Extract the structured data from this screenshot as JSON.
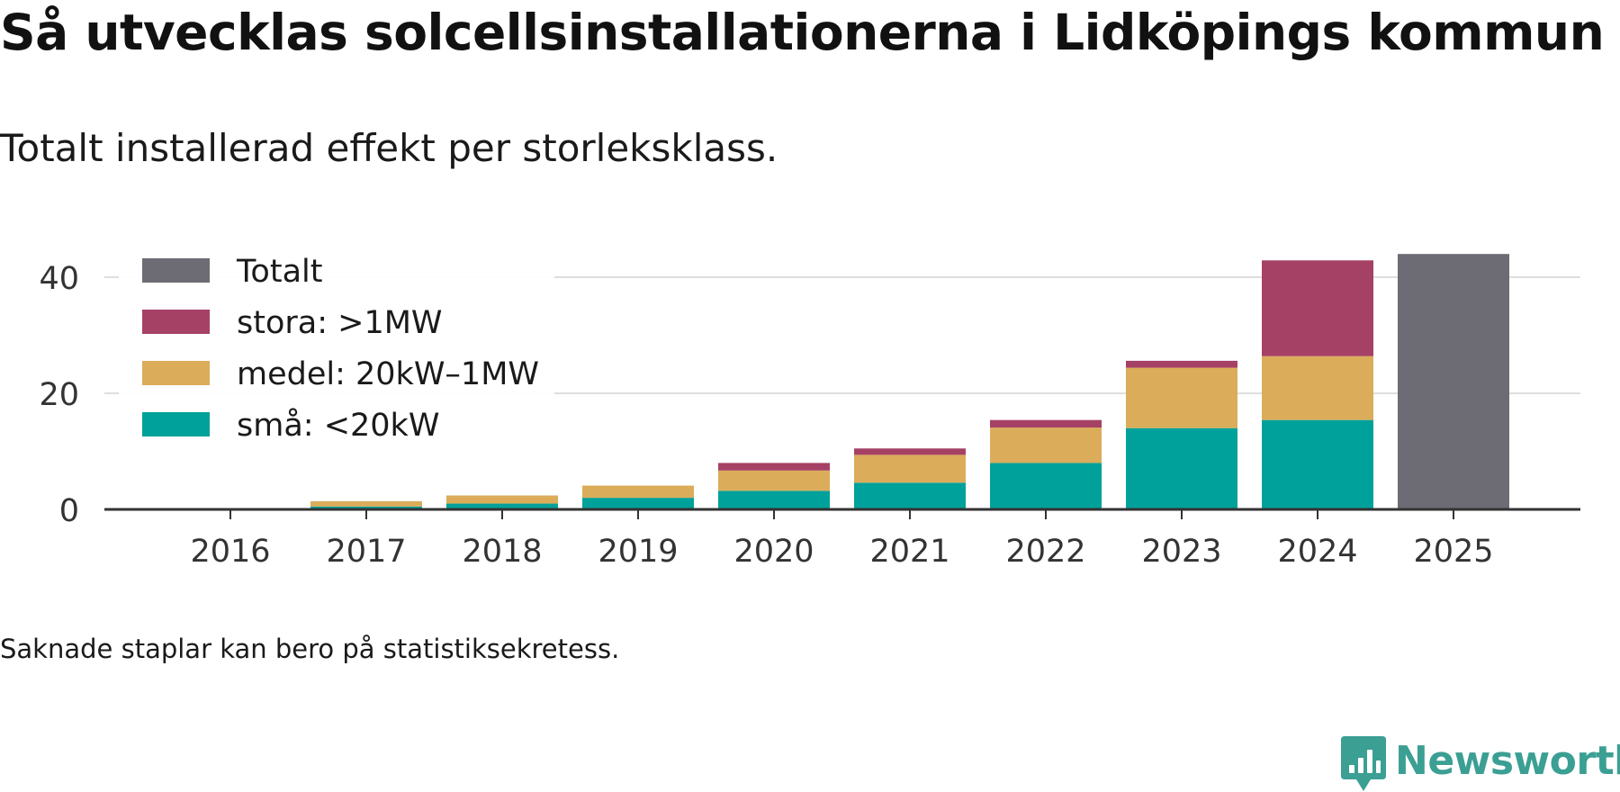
{
  "header": {
    "title": "Så utvecklas solcellsinstallationerna i Lidköpings kommun",
    "subtitle": "Totalt installerad effekt per storleksklass."
  },
  "footer": {
    "note": "Saknade staplar kan bero på statistiksekretess.",
    "brand": "Newsworthy"
  },
  "colors": {
    "sma": "#00a19a",
    "medel": "#dbac5a",
    "stora": "#a64166",
    "totalt": "#6d6b73",
    "grid": "#dedede",
    "axis": "#333333",
    "brand": "#3b9f93"
  },
  "chart_data": {
    "type": "bar",
    "stacked": true,
    "title": "Så utvecklas solcellsinstallationerna i Lidköpings kommun",
    "subtitle": "Totalt installerad effekt per storleksklass.",
    "xlabel": "",
    "ylabel": "",
    "ylim": [
      0,
      45
    ],
    "yticks": [
      0,
      20,
      40
    ],
    "grid": true,
    "legend_position": "top-left",
    "categories": [
      "2016",
      "2017",
      "2018",
      "2019",
      "2020",
      "2021",
      "2022",
      "2023",
      "2024",
      "2025"
    ],
    "legend": [
      {
        "key": "totalt",
        "label": "Totalt"
      },
      {
        "key": "stora",
        "label": "stora: >1MW"
      },
      {
        "key": "medel",
        "label": "medel: 20kW–1MW"
      },
      {
        "key": "sma",
        "label": "små: <20kW"
      }
    ],
    "series": [
      {
        "key": "sma",
        "name": "små: <20kW",
        "values": [
          0.1,
          0.5,
          1.0,
          2.0,
          3.2,
          4.6,
          8.0,
          14.0,
          15.4,
          null
        ]
      },
      {
        "key": "medel",
        "name": "medel: 20kW–1MW",
        "values": [
          0.05,
          0.9,
          1.4,
          2.1,
          3.5,
          4.8,
          6.1,
          10.4,
          11.0,
          null
        ]
      },
      {
        "key": "stora",
        "name": "stora: >1MW",
        "values": [
          0,
          0,
          0,
          0,
          1.3,
          1.1,
          1.3,
          1.2,
          16.5,
          null
        ]
      },
      {
        "key": "totalt",
        "name": "Totalt",
        "values": [
          null,
          null,
          null,
          null,
          null,
          null,
          null,
          null,
          null,
          44.0
        ]
      }
    ]
  }
}
